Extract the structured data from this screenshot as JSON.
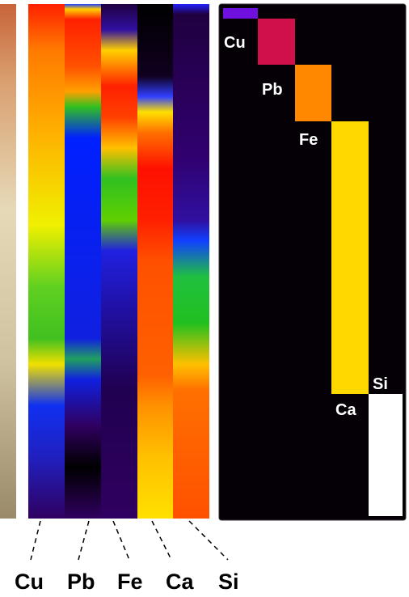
{
  "map_columns": [
    "Cu",
    "Pb",
    "Fe",
    "Ca",
    "Si"
  ],
  "layer_labels": [
    "Cu",
    "Pb",
    "Fe",
    "Ca",
    "Si"
  ]
}
